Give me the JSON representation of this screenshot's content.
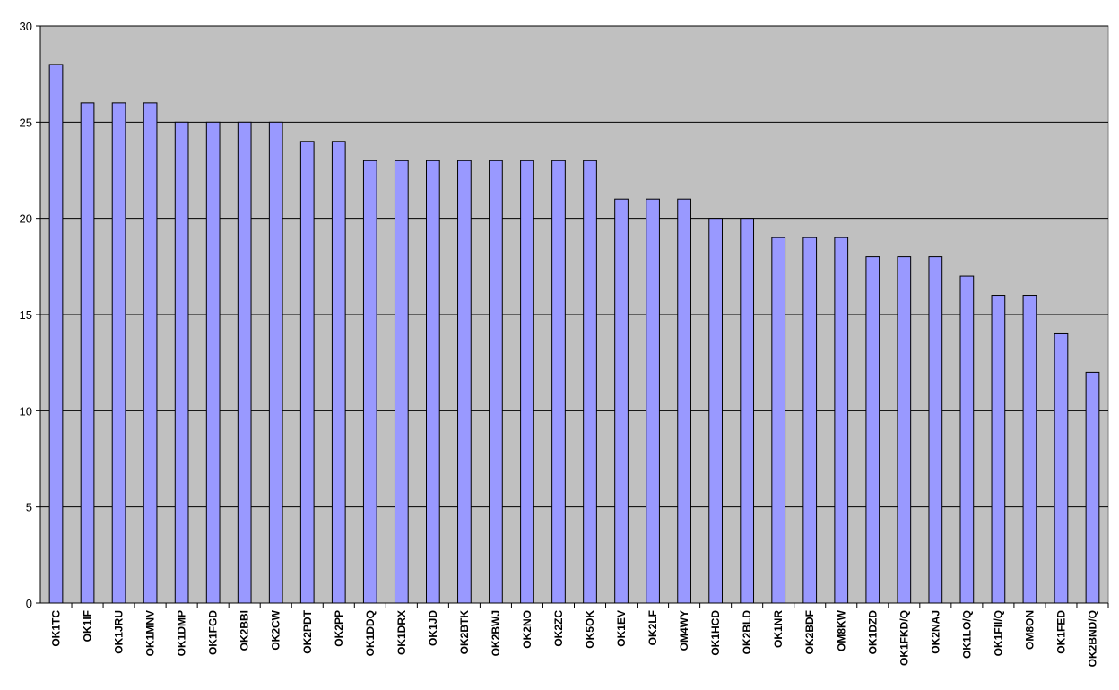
{
  "chart_data": {
    "type": "bar",
    "title": "",
    "xlabel": "",
    "ylabel": "",
    "ylim": [
      0,
      30
    ],
    "yticks": [
      0,
      5,
      10,
      15,
      20,
      25,
      30
    ],
    "grid": true,
    "legend": "none",
    "categories": [
      "OK1TC",
      "OK1IF",
      "OK1JRU",
      "OK1MNV",
      "OK1DMP",
      "OK1FGD",
      "OK2BBI",
      "OK2CW",
      "OK2PDT",
      "OK2PP",
      "OK1DDQ",
      "OK1DRX",
      "OK1JD",
      "OK2BTK",
      "OK2BWJ",
      "OK2NO",
      "OK2ZC",
      "OK5OK",
      "OK1EV",
      "OK2LF",
      "OM4WY",
      "OK1HCD",
      "OK2BLD",
      "OK1NR",
      "OK2BDF",
      "OM8KW",
      "OK1DZD",
      "OK1FKD/Q",
      "OK2NAJ",
      "OK1LO/Q",
      "OK1FII/Q",
      "OM8ON",
      "OK1FED",
      "OK2BND/Q"
    ],
    "values": [
      28,
      26,
      26,
      26,
      25,
      25,
      25,
      25,
      24,
      24,
      23,
      23,
      23,
      23,
      23,
      23,
      23,
      23,
      21,
      21,
      21,
      20,
      20,
      19,
      19,
      19,
      18,
      18,
      18,
      17,
      16,
      16,
      14,
      12
    ],
    "colors": {
      "plot_background": "#c0c0c0",
      "bar_fill": "#9999ff",
      "bar_stroke": "#000000",
      "gridline": "#000000"
    }
  }
}
